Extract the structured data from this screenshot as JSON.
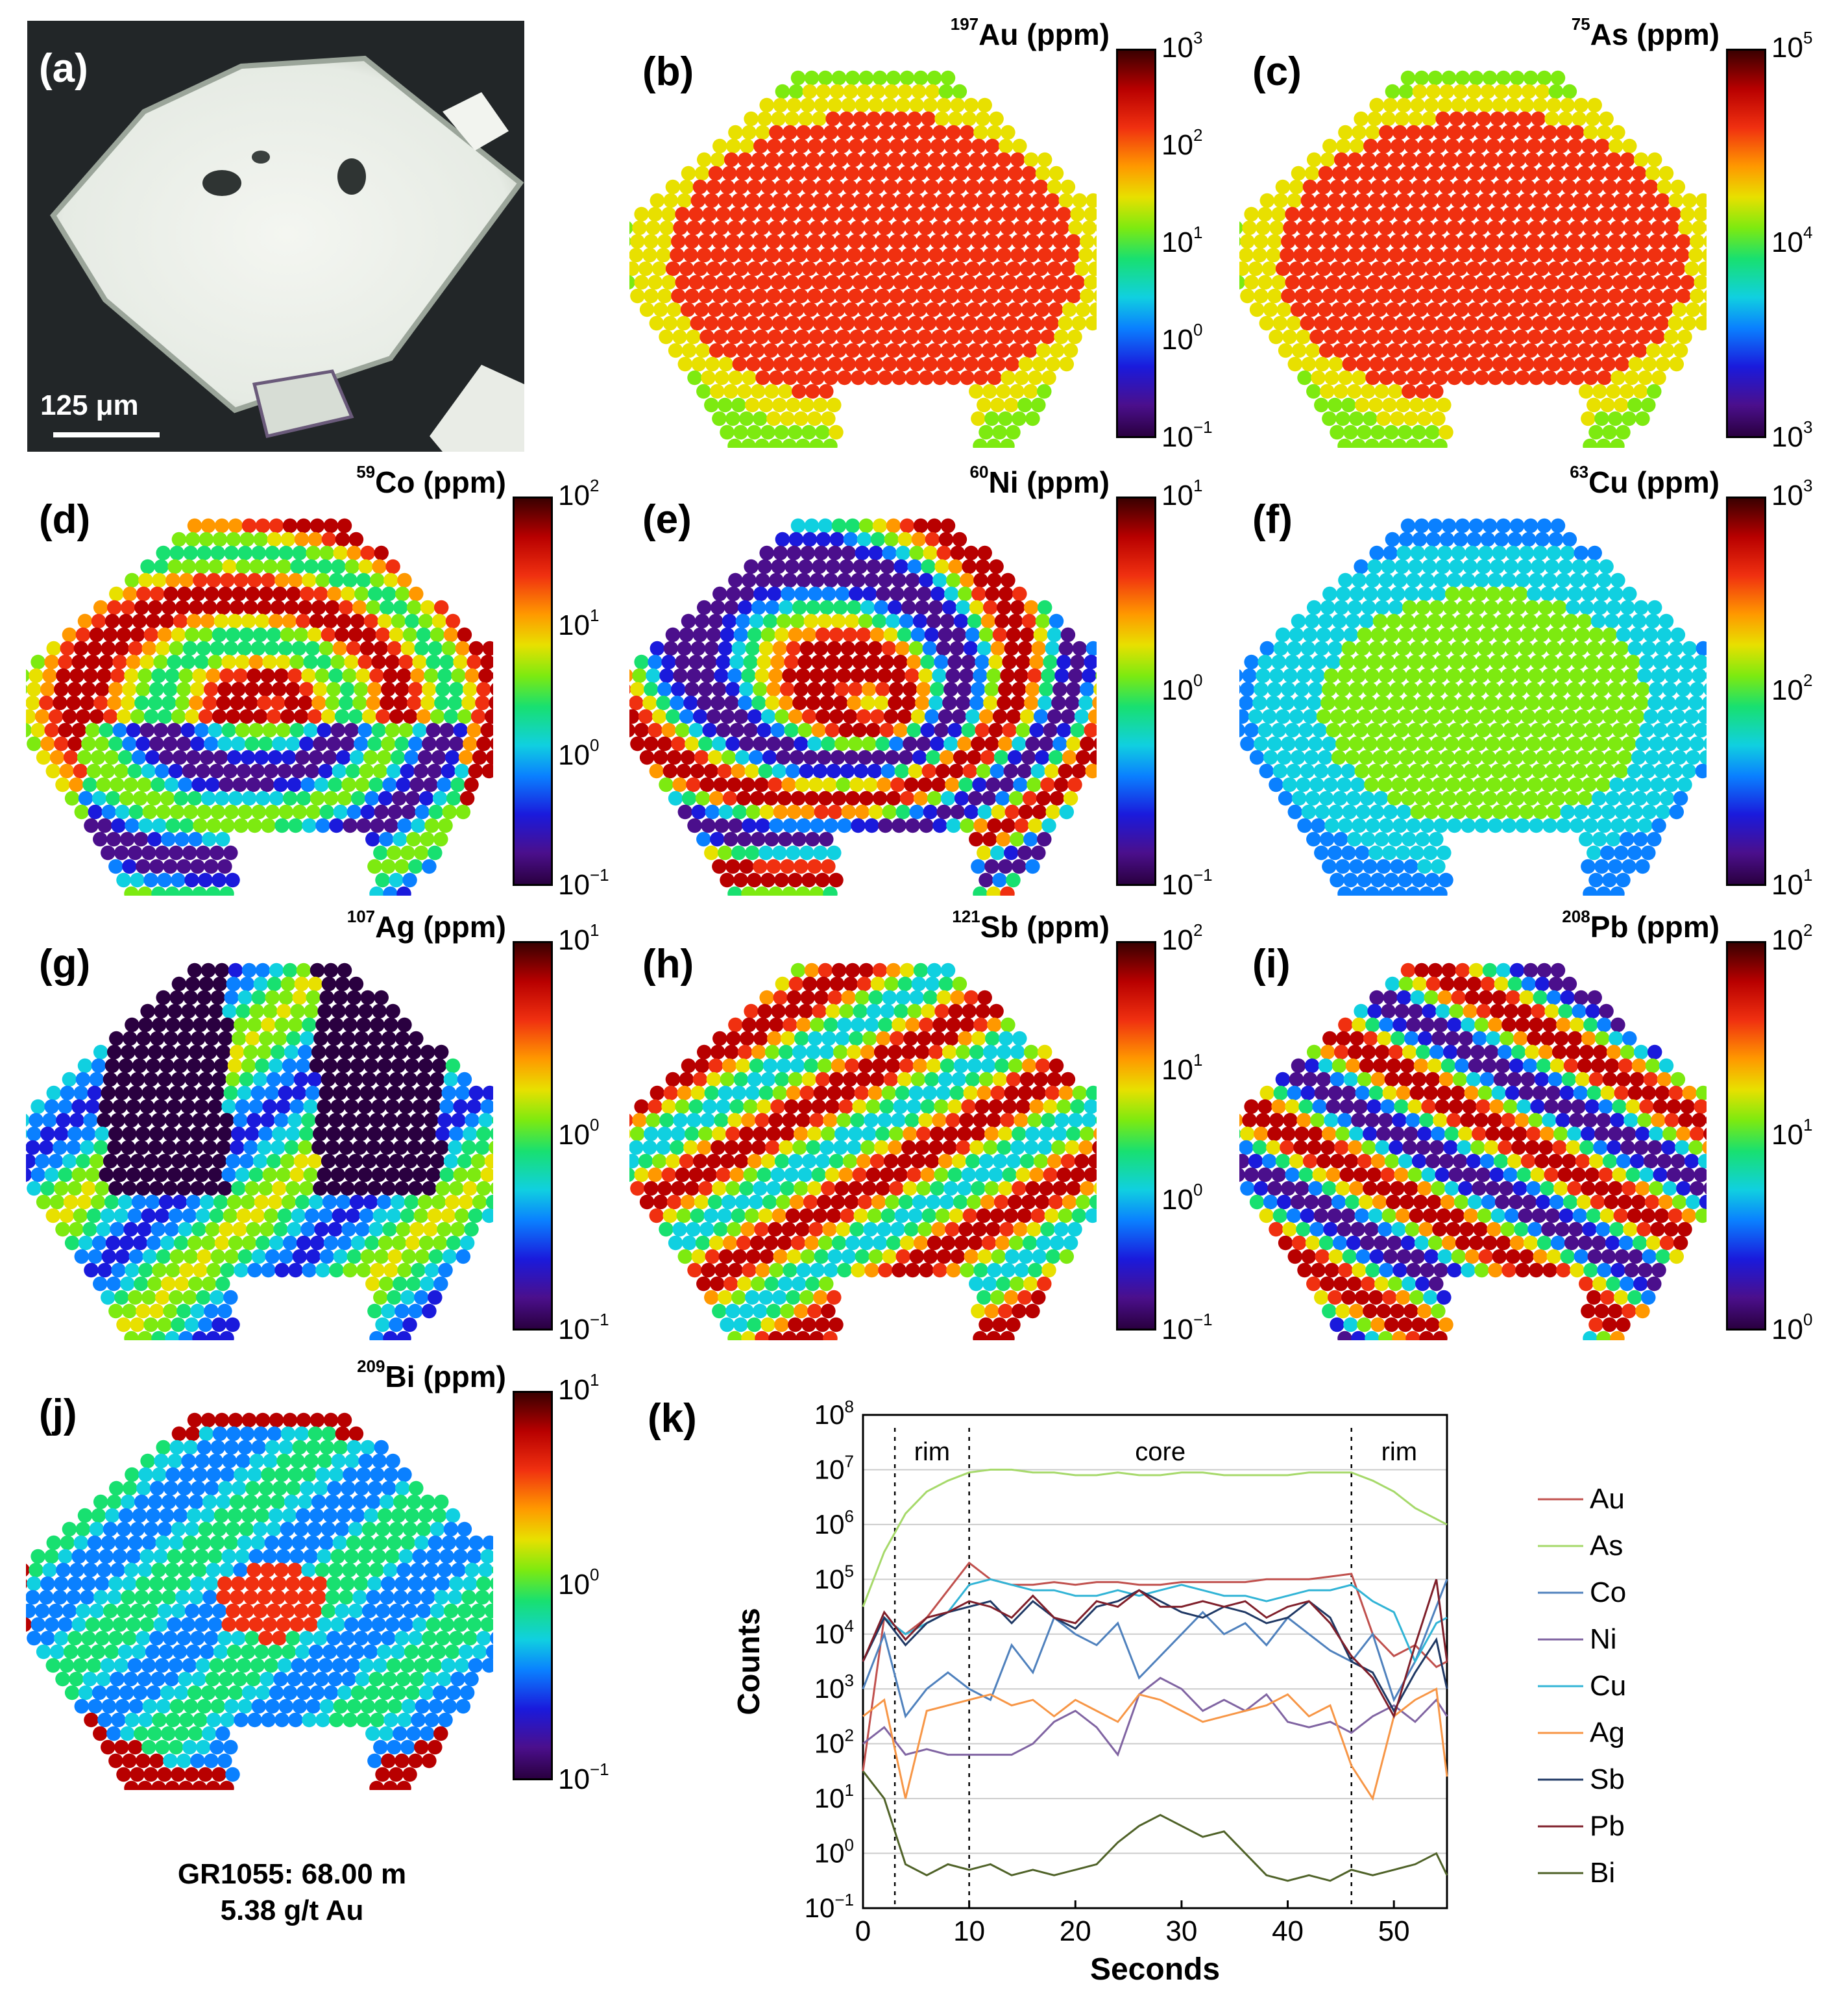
{
  "panels": {
    "a": {
      "label": "(a)",
      "scale_bar": "125 μm"
    },
    "b": {
      "label": "(b)",
      "isotope": "197",
      "element": "Au",
      "unit": "(ppm)",
      "ticks": [
        "10",
        "10",
        "10",
        "10",
        "10"
      ],
      "exps": [
        "3",
        "2",
        "1",
        "0",
        "−1"
      ]
    },
    "c": {
      "label": "(c)",
      "isotope": "75",
      "element": "As",
      "unit": "(ppm)",
      "ticks": [
        "10",
        "10",
        "10"
      ],
      "exps": [
        "5",
        "4",
        "3"
      ]
    },
    "d": {
      "label": "(d)",
      "isotope": "59",
      "element": "Co",
      "unit": "(ppm)",
      "ticks": [
        "10",
        "10",
        "10",
        "10"
      ],
      "exps": [
        "2",
        "1",
        "0",
        "−1"
      ]
    },
    "e": {
      "label": "(e)",
      "isotope": "60",
      "element": "Ni",
      "unit": "(ppm)",
      "ticks": [
        "10",
        "10",
        "10"
      ],
      "exps": [
        "1",
        "0",
        "−1"
      ]
    },
    "f": {
      "label": "(f)",
      "isotope": "63",
      "element": "Cu",
      "unit": "(ppm)",
      "ticks": [
        "10",
        "10",
        "10"
      ],
      "exps": [
        "3",
        "2",
        "1"
      ]
    },
    "g": {
      "label": "(g)",
      "isotope": "107",
      "element": "Ag",
      "unit": "(ppm)",
      "ticks": [
        "10",
        "10",
        "10"
      ],
      "exps": [
        "1",
        "0",
        "−1"
      ]
    },
    "h": {
      "label": "(h)",
      "isotope": "121",
      "element": "Sb",
      "unit": "(ppm)",
      "ticks": [
        "10",
        "10",
        "10",
        "10"
      ],
      "exps": [
        "2",
        "1",
        "0",
        "−1"
      ]
    },
    "i": {
      "label": "(i)",
      "isotope": "208",
      "element": "Pb",
      "unit": "(ppm)",
      "ticks": [
        "10",
        "10",
        "10"
      ],
      "exps": [
        "2",
        "1",
        "0"
      ]
    },
    "j": {
      "label": "(j)",
      "isotope": "209",
      "element": "Bi",
      "unit": "(ppm)",
      "ticks": [
        "10",
        "10",
        "10"
      ],
      "exps": [
        "1",
        "0",
        "−1"
      ]
    },
    "k": {
      "label": "(k)"
    }
  },
  "sample": {
    "line1": "GR1055: 68.00 m",
    "line2": "5.38 g/t Au"
  },
  "chart_data": {
    "type": "line",
    "title": "",
    "xlabel": "Seconds",
    "ylabel": "Counts",
    "xlim": [
      0,
      55
    ],
    "ylim_exp": [
      -1,
      8
    ],
    "yscale": "log",
    "x_ticks": [
      "0",
      "10",
      "20",
      "30",
      "40",
      "50"
    ],
    "y_tick_exps": [
      "8",
      "7",
      "6",
      "5",
      "4",
      "3",
      "2",
      "1",
      "0",
      "−1"
    ],
    "y_tick_base": "10",
    "grid": "horizontal",
    "legend_position": "right",
    "regions": [
      {
        "label": "rim",
        "from": 3,
        "to": 10
      },
      {
        "label": "core",
        "from": 10,
        "to": 46
      },
      {
        "label": "rim",
        "from": 46,
        "to": 55
      }
    ],
    "dividers": [
      3,
      10,
      46
    ],
    "x": [
      0,
      2,
      4,
      6,
      8,
      10,
      12,
      14,
      16,
      18,
      20,
      22,
      24,
      26,
      28,
      30,
      32,
      34,
      36,
      38,
      40,
      42,
      44,
      46,
      48,
      50,
      52,
      54,
      55
    ],
    "series": [
      {
        "name": "Au",
        "color": "#c0504d",
        "log_values": [
          1.5,
          4.3,
          4.0,
          4.3,
          4.8,
          5.3,
          5.0,
          4.9,
          4.9,
          4.95,
          4.9,
          4.95,
          4.95,
          4.9,
          4.9,
          4.95,
          4.95,
          4.95,
          4.95,
          5.0,
          5.0,
          5.0,
          5.05,
          5.1,
          4.0,
          3.6,
          3.8,
          3.4,
          3.5
        ]
      },
      {
        "name": "As",
        "color": "#a6d96a",
        "log_values": [
          4.5,
          5.5,
          6.2,
          6.6,
          6.8,
          6.95,
          7.0,
          7.0,
          6.95,
          6.95,
          6.9,
          6.9,
          6.95,
          6.9,
          6.9,
          6.95,
          6.95,
          6.9,
          6.9,
          6.9,
          6.9,
          6.95,
          6.95,
          6.95,
          6.8,
          6.6,
          6.3,
          6.1,
          6.0
        ]
      },
      {
        "name": "Co",
        "color": "#4f81bd",
        "log_values": [
          3.0,
          4.0,
          2.5,
          3.0,
          3.3,
          3.0,
          2.8,
          3.8,
          3.3,
          4.3,
          4.0,
          3.8,
          4.2,
          3.2,
          3.6,
          4.0,
          4.4,
          4.0,
          4.2,
          3.8,
          4.3,
          4.0,
          3.7,
          3.5,
          4.0,
          2.8,
          3.5,
          4.5,
          5.0
        ]
      },
      {
        "name": "Ni",
        "color": "#8064a2",
        "log_values": [
          2.0,
          2.3,
          1.8,
          1.9,
          1.8,
          1.8,
          1.8,
          1.8,
          2.0,
          2.4,
          2.6,
          2.3,
          1.8,
          2.9,
          3.2,
          3.0,
          2.6,
          2.8,
          2.6,
          2.9,
          2.4,
          2.3,
          2.4,
          2.2,
          2.5,
          2.7,
          2.4,
          2.8,
          2.5
        ]
      },
      {
        "name": "Cu",
        "color": "#31b4d6",
        "log_values": [
          3.5,
          4.3,
          4.0,
          4.2,
          4.4,
          4.9,
          5.0,
          4.9,
          4.8,
          4.8,
          4.7,
          4.7,
          4.8,
          4.7,
          4.8,
          4.9,
          4.8,
          4.7,
          4.7,
          4.6,
          4.7,
          4.8,
          4.8,
          4.9,
          4.6,
          4.4,
          3.5,
          4.2,
          4.3
        ]
      },
      {
        "name": "Ag",
        "color": "#f79646",
        "log_values": [
          2.5,
          2.8,
          1.0,
          2.6,
          2.7,
          2.8,
          2.9,
          2.7,
          2.8,
          2.5,
          2.8,
          2.6,
          2.4,
          2.9,
          2.8,
          2.6,
          2.4,
          2.5,
          2.6,
          2.7,
          2.9,
          2.5,
          2.7,
          1.6,
          1.0,
          2.5,
          2.8,
          3.0,
          1.4
        ]
      },
      {
        "name": "Sb",
        "color": "#1f3864",
        "log_values": [
          3.5,
          4.3,
          3.8,
          4.2,
          4.4,
          4.5,
          4.6,
          4.2,
          4.6,
          4.3,
          4.1,
          4.5,
          4.6,
          4.8,
          4.6,
          4.4,
          4.3,
          4.5,
          4.4,
          4.2,
          4.3,
          4.6,
          4.3,
          3.5,
          3.3,
          2.6,
          3.3,
          3.9,
          3.0
        ]
      },
      {
        "name": "Pb",
        "color": "#7f1f2a",
        "log_values": [
          3.5,
          4.4,
          3.9,
          4.3,
          4.4,
          4.6,
          4.5,
          4.3,
          4.7,
          4.3,
          4.2,
          4.6,
          4.5,
          4.8,
          4.5,
          4.5,
          4.6,
          4.5,
          4.6,
          4.3,
          4.5,
          4.6,
          4.2,
          3.6,
          3.2,
          2.5,
          3.8,
          5.0,
          3.5
        ]
      },
      {
        "name": "Bi",
        "color": "#4f6228",
        "log_values": [
          1.5,
          1.0,
          -0.2,
          -0.4,
          -0.2,
          -0.3,
          -0.2,
          -0.4,
          -0.3,
          -0.4,
          -0.3,
          -0.2,
          0.2,
          0.5,
          0.7,
          0.5,
          0.3,
          0.4,
          0.0,
          -0.4,
          -0.5,
          -0.4,
          -0.5,
          -0.3,
          -0.4,
          -0.3,
          -0.2,
          0.0,
          -0.4
        ]
      }
    ]
  }
}
